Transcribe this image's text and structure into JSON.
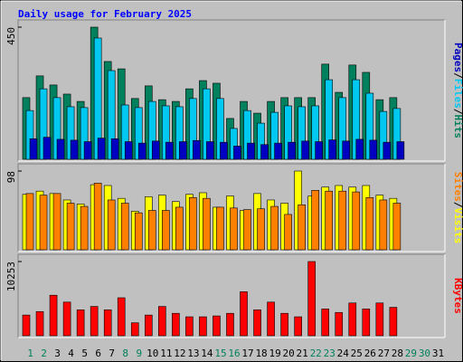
{
  "title": "Daily usage for February 2025",
  "legend_separator": "/",
  "chart_data": [
    {
      "type": "bar",
      "ylim": [
        0,
        450
      ],
      "yticks": [
        450
      ],
      "series": [
        {
          "name": "Hits",
          "color": "#00805c",
          "values": [
            210,
            284,
            253,
            222,
            197,
            450,
            333,
            308,
            207,
            250,
            203,
            197,
            240,
            268,
            259,
            139,
            197,
            157,
            197,
            210,
            210,
            210,
            324,
            228,
            321,
            296,
            203,
            210,
            null,
            null,
            null
          ]
        },
        {
          "name": "Files",
          "color": "#00c8f0",
          "values": [
            166,
            240,
            210,
            179,
            176,
            413,
            302,
            185,
            176,
            197,
            182,
            179,
            207,
            240,
            207,
            105,
            166,
            123,
            160,
            182,
            179,
            182,
            271,
            210,
            271,
            225,
            163,
            173,
            null,
            null,
            null
          ]
        },
        {
          "name": "Pages",
          "color": "#0000c0",
          "values": [
            70,
            75,
            68,
            65,
            60,
            72,
            70,
            60,
            55,
            62,
            58,
            60,
            64,
            60,
            58,
            45,
            55,
            50,
            55,
            58,
            62,
            60,
            66,
            62,
            68,
            65,
            58,
            60,
            null,
            null,
            null
          ]
        }
      ]
    },
    {
      "type": "bar",
      "ylim": [
        0,
        98
      ],
      "yticks": [
        98
      ],
      "series": [
        {
          "name": "Visits",
          "color": "#ffff00",
          "values": [
            69,
            73,
            70,
            62,
            57,
            81,
            80,
            64,
            48,
            66,
            68,
            60,
            69,
            71,
            53,
            67,
            49,
            70,
            62,
            58,
            98,
            67,
            78,
            80,
            78,
            80,
            68,
            64,
            null,
            null,
            null
          ]
        },
        {
          "name": "Sites",
          "color": "#ff8000",
          "values": [
            70,
            68,
            70,
            58,
            54,
            83,
            62,
            58,
            46,
            49,
            49,
            53,
            65,
            64,
            53,
            52,
            50,
            51,
            54,
            44,
            56,
            74,
            73,
            73,
            72,
            65,
            62,
            58,
            null,
            null,
            null
          ]
        }
      ]
    },
    {
      "type": "bar",
      "ylim": [
        0,
        10253
      ],
      "yticks": [
        10253
      ],
      "categories": [
        "1",
        "2",
        "3",
        "4",
        "5",
        "6",
        "7",
        "8",
        "9",
        "10",
        "11",
        "12",
        "13",
        "14",
        "15",
        "16",
        "17",
        "18",
        "19",
        "20",
        "21",
        "22",
        "23",
        "24",
        "25",
        "26",
        "27",
        "28",
        "29",
        "30",
        "31"
      ],
      "category_colors": [
        "#00805c",
        "#00805c",
        "#000000",
        "#000000",
        "#000000",
        "#000000",
        "#000000",
        "#00805c",
        "#00805c",
        "#000000",
        "#000000",
        "#000000",
        "#000000",
        "#000000",
        "#00805c",
        "#00805c",
        "#000000",
        "#000000",
        "#000000",
        "#000000",
        "#000000",
        "#00805c",
        "#00805c",
        "#000000",
        "#000000",
        "#000000",
        "#000000",
        "#000000",
        "#00805c",
        "#00805c",
        "#000000"
      ],
      "series": [
        {
          "name": "KBytes",
          "color": "#ff0000",
          "values": [
            2860,
            3340,
            5600,
            4650,
            3580,
            4050,
            3580,
            5250,
            1790,
            2860,
            4050,
            3100,
            2620,
            2620,
            2740,
            3100,
            6080,
            3580,
            4650,
            3100,
            2620,
            10253,
            3700,
            3220,
            4530,
            3700,
            4530,
            3930,
            null,
            null,
            null
          ]
        }
      ]
    }
  ]
}
